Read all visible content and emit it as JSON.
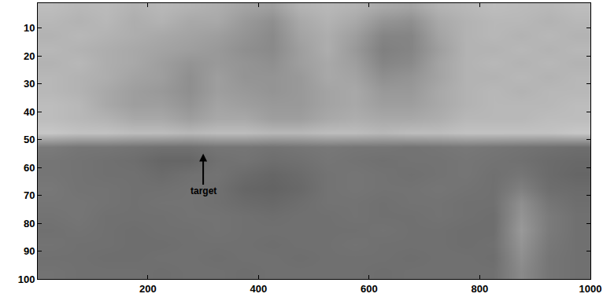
{
  "chart_data": {
    "type": "heatmap",
    "x": [
      25,
      75,
      125,
      175,
      225,
      275,
      325,
      375,
      425,
      475,
      525,
      575,
      625,
      675,
      725,
      775,
      825,
      875,
      925,
      975
    ],
    "y": [
      2.5,
      7.5,
      12.5,
      17.5,
      22.5,
      27.5,
      32.5,
      37.5,
      42.5,
      47.5,
      52.5,
      57.5,
      62.5,
      67.5,
      72.5,
      77.5,
      82.5,
      87.5,
      92.5,
      97.5
    ],
    "cells": [
      [
        0.74,
        0.72,
        0.73,
        0.7,
        0.72,
        0.7,
        0.68,
        0.64,
        0.62,
        0.7,
        0.72,
        0.7,
        0.66,
        0.64,
        0.7,
        0.72,
        0.74,
        0.73,
        0.72,
        0.74
      ],
      [
        0.72,
        0.7,
        0.72,
        0.68,
        0.7,
        0.66,
        0.66,
        0.6,
        0.56,
        0.66,
        0.7,
        0.66,
        0.58,
        0.56,
        0.66,
        0.7,
        0.72,
        0.72,
        0.7,
        0.72
      ],
      [
        0.7,
        0.72,
        0.7,
        0.68,
        0.66,
        0.64,
        0.62,
        0.58,
        0.54,
        0.64,
        0.68,
        0.62,
        0.52,
        0.52,
        0.64,
        0.7,
        0.72,
        0.7,
        0.72,
        0.7
      ],
      [
        0.72,
        0.7,
        0.68,
        0.66,
        0.64,
        0.62,
        0.6,
        0.56,
        0.54,
        0.62,
        0.68,
        0.6,
        0.5,
        0.52,
        0.62,
        0.7,
        0.7,
        0.72,
        0.7,
        0.72
      ],
      [
        0.7,
        0.72,
        0.68,
        0.66,
        0.62,
        0.58,
        0.6,
        0.58,
        0.56,
        0.62,
        0.66,
        0.62,
        0.52,
        0.54,
        0.64,
        0.7,
        0.72,
        0.7,
        0.72,
        0.7
      ],
      [
        0.72,
        0.7,
        0.68,
        0.64,
        0.62,
        0.56,
        0.62,
        0.58,
        0.58,
        0.6,
        0.66,
        0.64,
        0.56,
        0.58,
        0.64,
        0.7,
        0.7,
        0.72,
        0.7,
        0.72
      ],
      [
        0.72,
        0.7,
        0.66,
        0.62,
        0.6,
        0.56,
        0.62,
        0.6,
        0.58,
        0.6,
        0.64,
        0.66,
        0.6,
        0.6,
        0.66,
        0.7,
        0.72,
        0.7,
        0.72,
        0.72
      ],
      [
        0.74,
        0.72,
        0.66,
        0.62,
        0.62,
        0.58,
        0.64,
        0.62,
        0.6,
        0.6,
        0.64,
        0.66,
        0.62,
        0.62,
        0.66,
        0.7,
        0.72,
        0.72,
        0.72,
        0.74
      ],
      [
        0.74,
        0.72,
        0.7,
        0.66,
        0.66,
        0.62,
        0.66,
        0.66,
        0.62,
        0.62,
        0.66,
        0.68,
        0.66,
        0.66,
        0.68,
        0.72,
        0.72,
        0.72,
        0.74,
        0.74
      ],
      [
        0.78,
        0.76,
        0.76,
        0.74,
        0.74,
        0.72,
        0.74,
        0.74,
        0.72,
        0.72,
        0.74,
        0.74,
        0.72,
        0.74,
        0.74,
        0.76,
        0.76,
        0.76,
        0.76,
        0.78
      ],
      [
        0.48,
        0.46,
        0.46,
        0.45,
        0.44,
        0.44,
        0.46,
        0.46,
        0.45,
        0.46,
        0.47,
        0.46,
        0.46,
        0.45,
        0.46,
        0.47,
        0.46,
        0.45,
        0.44,
        0.43
      ],
      [
        0.46,
        0.45,
        0.44,
        0.43,
        0.4,
        0.4,
        0.44,
        0.45,
        0.43,
        0.44,
        0.46,
        0.45,
        0.44,
        0.45,
        0.45,
        0.46,
        0.45,
        0.44,
        0.42,
        0.41
      ],
      [
        0.46,
        0.45,
        0.44,
        0.44,
        0.42,
        0.44,
        0.45,
        0.42,
        0.4,
        0.42,
        0.45,
        0.46,
        0.45,
        0.44,
        0.45,
        0.46,
        0.44,
        0.46,
        0.42,
        0.4
      ],
      [
        0.47,
        0.45,
        0.45,
        0.44,
        0.44,
        0.45,
        0.44,
        0.4,
        0.39,
        0.41,
        0.45,
        0.46,
        0.45,
        0.45,
        0.46,
        0.45,
        0.44,
        0.5,
        0.43,
        0.42
      ],
      [
        0.46,
        0.46,
        0.45,
        0.44,
        0.45,
        0.45,
        0.44,
        0.42,
        0.41,
        0.43,
        0.45,
        0.45,
        0.44,
        0.45,
        0.45,
        0.44,
        0.44,
        0.56,
        0.46,
        0.43
      ],
      [
        0.45,
        0.46,
        0.44,
        0.44,
        0.44,
        0.45,
        0.45,
        0.44,
        0.43,
        0.44,
        0.44,
        0.45,
        0.44,
        0.44,
        0.45,
        0.44,
        0.43,
        0.58,
        0.48,
        0.44
      ],
      [
        0.44,
        0.45,
        0.44,
        0.43,
        0.44,
        0.44,
        0.45,
        0.44,
        0.44,
        0.44,
        0.44,
        0.44,
        0.45,
        0.44,
        0.44,
        0.43,
        0.43,
        0.6,
        0.48,
        0.44
      ],
      [
        0.45,
        0.44,
        0.44,
        0.43,
        0.43,
        0.44,
        0.44,
        0.44,
        0.43,
        0.44,
        0.44,
        0.45,
        0.44,
        0.44,
        0.44,
        0.43,
        0.44,
        0.58,
        0.47,
        0.44
      ],
      [
        0.44,
        0.44,
        0.43,
        0.43,
        0.44,
        0.44,
        0.43,
        0.44,
        0.44,
        0.43,
        0.44,
        0.44,
        0.44,
        0.43,
        0.44,
        0.44,
        0.43,
        0.56,
        0.46,
        0.44
      ],
      [
        0.45,
        0.44,
        0.44,
        0.44,
        0.43,
        0.44,
        0.44,
        0.43,
        0.44,
        0.44,
        0.44,
        0.44,
        0.43,
        0.44,
        0.44,
        0.44,
        0.44,
        0.54,
        0.46,
        0.44
      ]
    ],
    "zlim": [
      0,
      1
    ],
    "xlim": [
      1,
      1000
    ],
    "ylim": [
      1,
      100
    ],
    "xticks": [
      200,
      400,
      600,
      800,
      1000
    ],
    "yticks": [
      10,
      20,
      30,
      40,
      50,
      60,
      70,
      80,
      90,
      100
    ],
    "annotations": [
      {
        "text": "target",
        "x": 300,
        "y": 55
      }
    ]
  }
}
